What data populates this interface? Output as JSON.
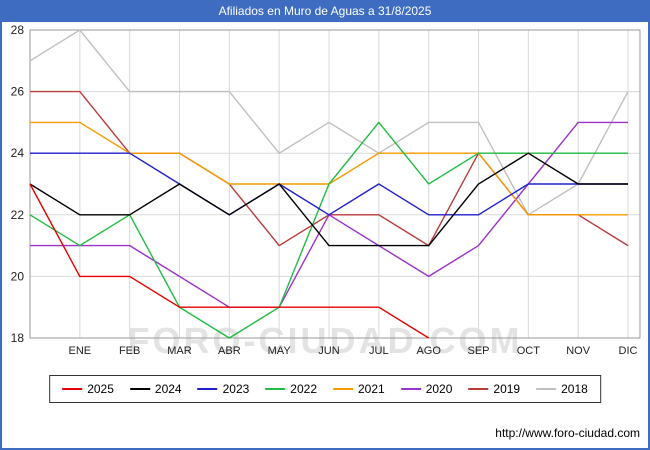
{
  "header": {
    "title": "Afiliados en Muro de Aguas a 31/8/2025",
    "bar_color": "#3d6cc0"
  },
  "watermark": "FORO-CIUDAD.COM",
  "footer": {
    "url": "http://www.foro-ciudad.com"
  },
  "chart_data": {
    "type": "line",
    "title": "Afiliados en Muro de Aguas a 31/8/2025",
    "categories": [
      "ENE",
      "FEB",
      "MAR",
      "ABR",
      "MAY",
      "JUN",
      "JUL",
      "AGO",
      "SEP",
      "OCT",
      "NOV",
      "DIC"
    ],
    "ylim": [
      18,
      28
    ],
    "yticks": [
      18,
      20,
      22,
      24,
      26,
      28
    ],
    "grid": true,
    "legend_position": "bottom",
    "series": [
      {
        "name": "2025",
        "color": "#e60000",
        "prev_dec": 23,
        "values": [
          20,
          20,
          19,
          19,
          19,
          19,
          19,
          18,
          null,
          null,
          null,
          null
        ]
      },
      {
        "name": "2024",
        "color": "#000000",
        "prev_dec": 23,
        "values": [
          22,
          22,
          23,
          22,
          23,
          21,
          21,
          21,
          23,
          24,
          23,
          23
        ]
      },
      {
        "name": "2023",
        "color": "#2020cc",
        "prev_dec": 24,
        "values": [
          24,
          24,
          23,
          22,
          23,
          22,
          23,
          22,
          22,
          23,
          23,
          23
        ]
      },
      {
        "name": "2022",
        "color": "#22bb44",
        "prev_dec": 22,
        "values": [
          21,
          22,
          19,
          18,
          19,
          23,
          25,
          23,
          24,
          24,
          24,
          24
        ]
      },
      {
        "name": "2021",
        "color": "#f59b00",
        "prev_dec": 25,
        "values": [
          25,
          24,
          24,
          23,
          23,
          23,
          24,
          24,
          24,
          22,
          22,
          22
        ]
      },
      {
        "name": "2020",
        "color": "#9933cc",
        "prev_dec": 21,
        "values": [
          21,
          21,
          20,
          19,
          19,
          22,
          21,
          20,
          21,
          23,
          25,
          25
        ]
      },
      {
        "name": "2019",
        "color": "#bb3b3b",
        "prev_dec": 26,
        "values": [
          26,
          24,
          24,
          23,
          21,
          22,
          22,
          21,
          24,
          22,
          22,
          21
        ]
      },
      {
        "name": "2018",
        "color": "#c0c0c0",
        "prev_dec": 27,
        "values": [
          28,
          26,
          26,
          26,
          24,
          25,
          24,
          25,
          25,
          22,
          23,
          26
        ]
      }
    ]
  }
}
